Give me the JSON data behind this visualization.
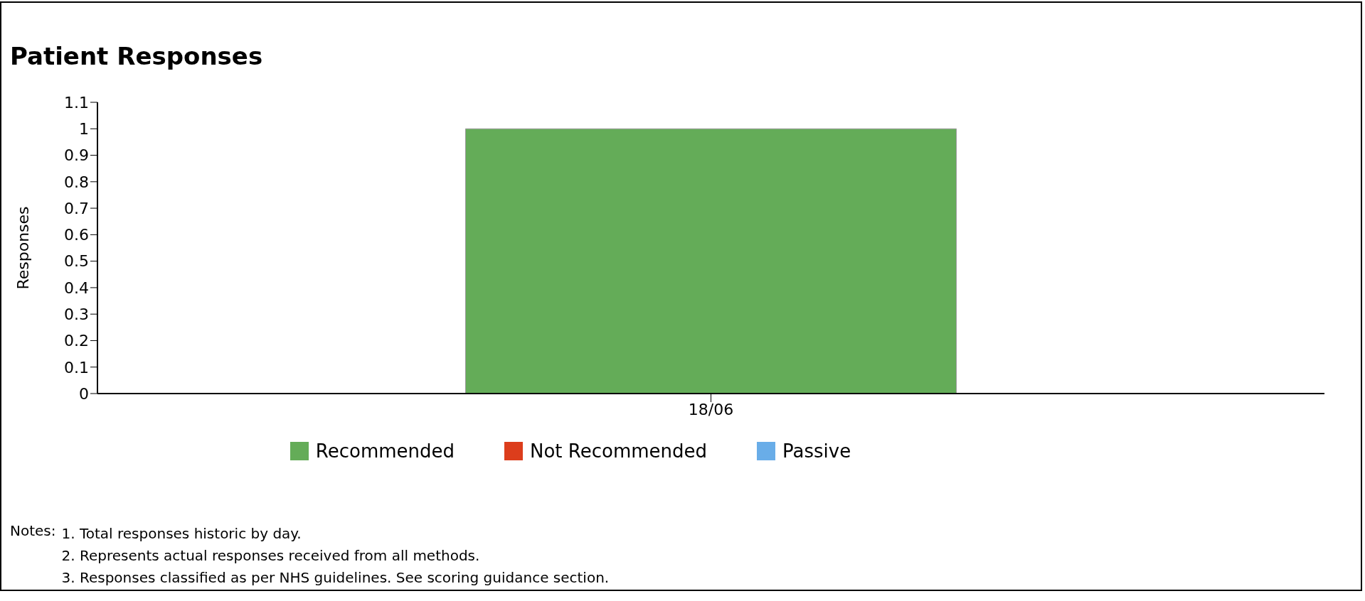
{
  "chart_data": {
    "type": "bar",
    "title": "Patient Responses",
    "ylabel": "Responses",
    "categories": [
      "18/06"
    ],
    "stacked": true,
    "series": [
      {
        "name": "Recommended",
        "color": "#64ac58",
        "values": [
          1
        ]
      },
      {
        "name": "Not Recommended",
        "color": "#dc3d1c",
        "values": [
          0
        ]
      },
      {
        "name": "Passive",
        "color": "#69ade8",
        "values": [
          0
        ]
      }
    ],
    "ylim": [
      0,
      1.1
    ],
    "yticks": [
      0,
      0.1,
      0.2,
      0.3,
      0.4,
      0.5,
      0.6,
      0.7,
      0.8,
      0.9,
      1,
      1.1
    ],
    "grid": false,
    "legend": "bottom",
    "annotations": [
      "Notes:",
      "1. Total responses historic by day.",
      "2. Represents actual responses received from all methods.",
      "3. Responses classified as per NHS guidelines. See scoring guidance section."
    ]
  }
}
